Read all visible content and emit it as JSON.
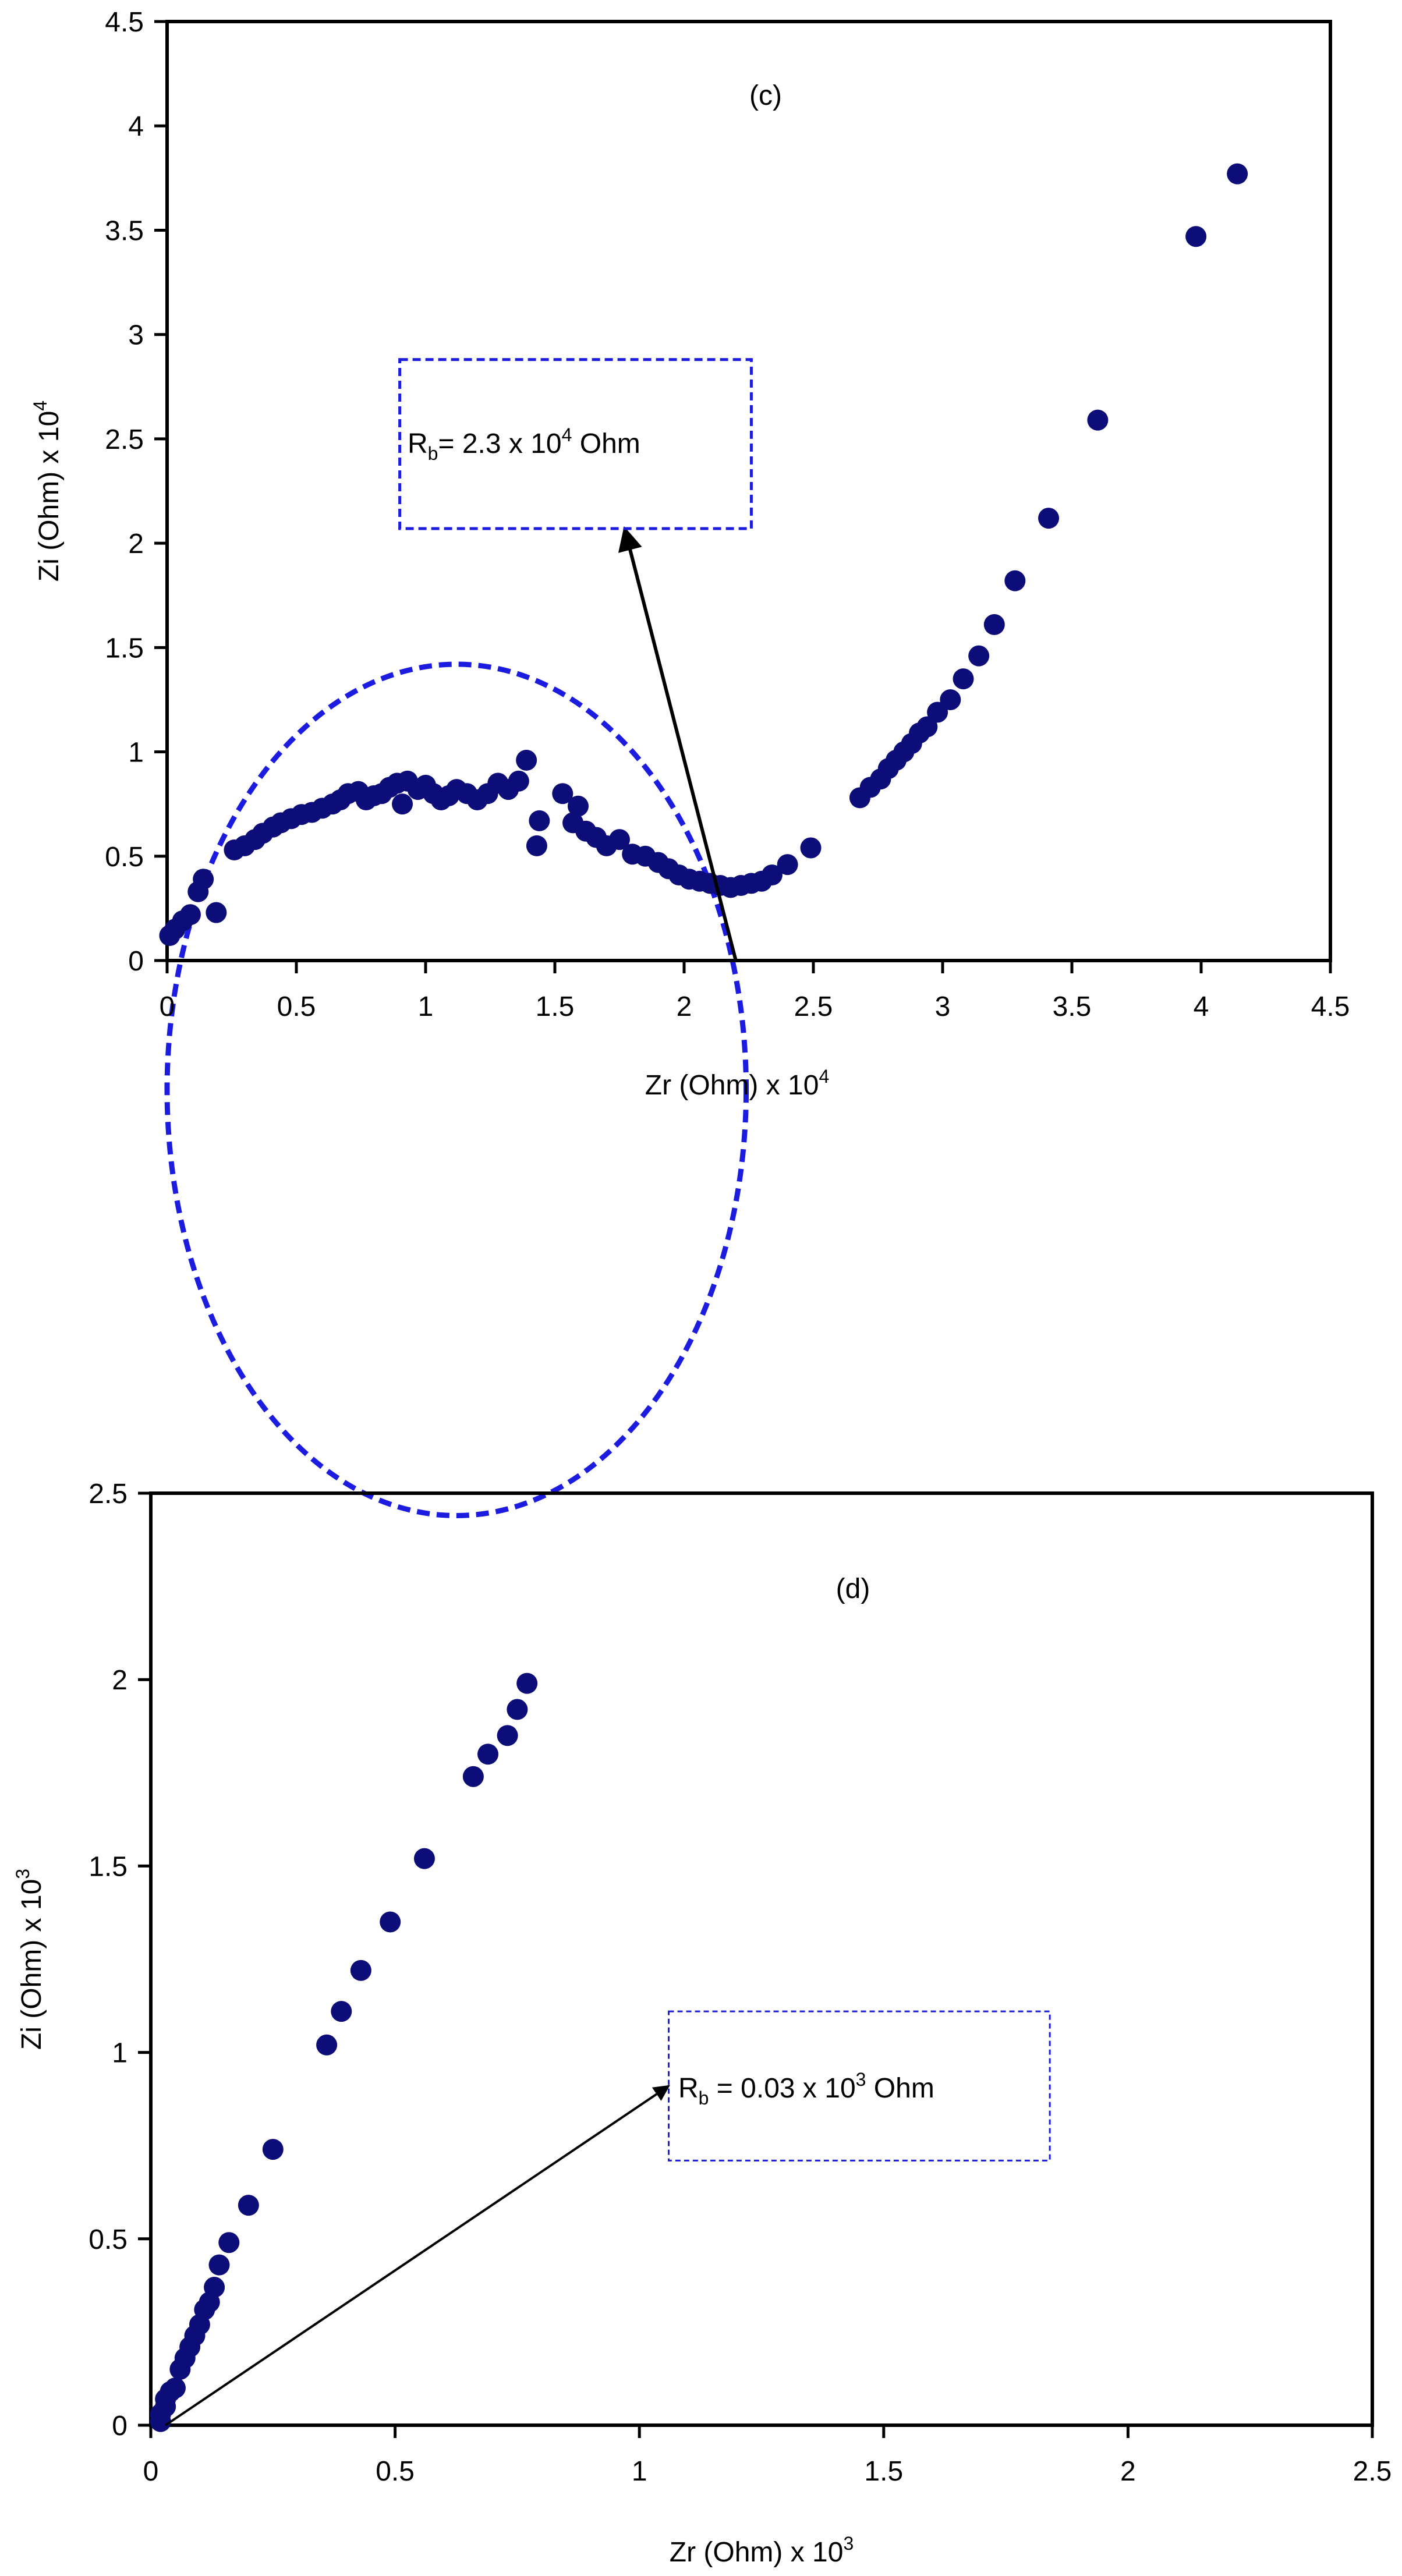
{
  "colors": {
    "marker": "#0D0D7A",
    "circle": "#1C1CE0",
    "box": "#1C1CE0",
    "arrow": "#000000",
    "frame": "#000000"
  },
  "chart_data": [
    {
      "type": "scatter",
      "panel_label": "(c)",
      "xlabel": {
        "base": "Zr (Ohm) x 10",
        "exp": "4"
      },
      "ylabel": {
        "base": "Zi (Ohm) x 10",
        "exp": "4"
      },
      "xlim": [
        0,
        4.5
      ],
      "ylim": [
        0,
        4.5
      ],
      "xticks": [
        "0",
        "0.5",
        "1",
        "1.5",
        "2",
        "2.5",
        "3",
        "3.5",
        "4",
        "4.5"
      ],
      "yticks": [
        "0",
        "0.5",
        "1",
        "1.5",
        "2",
        "2.5",
        "3",
        "3.5",
        "4",
        "4.5"
      ],
      "grid": false,
      "annotation": {
        "prefix": "R",
        "sub": "b",
        "mid": "= 2.3 x 10",
        "exp": "4",
        "suffix": " Ohm"
      },
      "arrow": {
        "from": [
          2.2,
          0
        ],
        "to": [
          1.77,
          2.07
        ]
      },
      "box": {
        "x": [
          0.9,
          2.26
        ],
        "y": [
          2.07,
          2.88
        ]
      },
      "fit_circle": {
        "cx": 1.12,
        "cy": -0.62,
        "rx": 1.12,
        "ry": 2.04
      },
      "points": [
        [
          0.01,
          0.12
        ],
        [
          0.03,
          0.15
        ],
        [
          0.06,
          0.19
        ],
        [
          0.09,
          0.22
        ],
        [
          0.12,
          0.33
        ],
        [
          0.14,
          0.39
        ],
        [
          0.19,
          0.23
        ],
        [
          0.26,
          0.53
        ],
        [
          0.3,
          0.55
        ],
        [
          0.34,
          0.58
        ],
        [
          0.37,
          0.61
        ],
        [
          0.41,
          0.64
        ],
        [
          0.44,
          0.66
        ],
        [
          0.48,
          0.68
        ],
        [
          0.52,
          0.7
        ],
        [
          0.56,
          0.71
        ],
        [
          0.6,
          0.73
        ],
        [
          0.64,
          0.75
        ],
        [
          0.67,
          0.77
        ],
        [
          0.7,
          0.8
        ],
        [
          0.74,
          0.81
        ],
        [
          0.77,
          0.77
        ],
        [
          0.8,
          0.79
        ],
        [
          0.83,
          0.8
        ],
        [
          0.86,
          0.83
        ],
        [
          0.89,
          0.85
        ],
        [
          0.91,
          0.75
        ],
        [
          0.93,
          0.86
        ],
        [
          0.97,
          0.82
        ],
        [
          1.0,
          0.84
        ],
        [
          1.03,
          0.8
        ],
        [
          1.06,
          0.77
        ],
        [
          1.09,
          0.79
        ],
        [
          1.12,
          0.82
        ],
        [
          1.16,
          0.8
        ],
        [
          1.2,
          0.77
        ],
        [
          1.24,
          0.8
        ],
        [
          1.28,
          0.85
        ],
        [
          1.32,
          0.82
        ],
        [
          1.36,
          0.86
        ],
        [
          1.39,
          0.96
        ],
        [
          1.43,
          0.55
        ],
        [
          1.44,
          0.67
        ],
        [
          1.53,
          0.8
        ],
        [
          1.57,
          0.66
        ],
        [
          1.59,
          0.74
        ],
        [
          1.62,
          0.62
        ],
        [
          1.66,
          0.59
        ],
        [
          1.7,
          0.55
        ],
        [
          1.75,
          0.58
        ],
        [
          1.8,
          0.51
        ],
        [
          1.85,
          0.5
        ],
        [
          1.9,
          0.47
        ],
        [
          1.94,
          0.44
        ],
        [
          1.98,
          0.41
        ],
        [
          2.02,
          0.39
        ],
        [
          2.06,
          0.38
        ],
        [
          2.1,
          0.37
        ],
        [
          2.14,
          0.36
        ],
        [
          2.18,
          0.35
        ],
        [
          2.22,
          0.36
        ],
        [
          2.26,
          0.37
        ],
        [
          2.3,
          0.38
        ],
        [
          2.34,
          0.41
        ],
        [
          2.4,
          0.46
        ],
        [
          2.49,
          0.54
        ],
        [
          2.68,
          0.78
        ],
        [
          2.72,
          0.83
        ],
        [
          2.76,
          0.87
        ],
        [
          2.79,
          0.92
        ],
        [
          2.82,
          0.96
        ],
        [
          2.85,
          1.0
        ],
        [
          2.88,
          1.04
        ],
        [
          2.91,
          1.09
        ],
        [
          2.94,
          1.12
        ],
        [
          2.98,
          1.19
        ],
        [
          3.03,
          1.25
        ],
        [
          3.08,
          1.35
        ],
        [
          3.14,
          1.46
        ],
        [
          3.2,
          1.61
        ],
        [
          3.28,
          1.82
        ],
        [
          3.41,
          2.12
        ],
        [
          3.6,
          2.59
        ],
        [
          3.98,
          3.47
        ],
        [
          4.14,
          3.77
        ]
      ]
    },
    {
      "type": "scatter",
      "panel_label": "(d)",
      "xlabel": {
        "base": "Zr (Ohm) x 10",
        "exp": "3"
      },
      "ylabel": {
        "base": "Zi (Ohm) x 10",
        "exp": "3"
      },
      "xlim": [
        0,
        2.5
      ],
      "ylim": [
        0,
        2.5
      ],
      "xticks": [
        "0",
        "0.5",
        "1",
        "1.5",
        "2",
        "2.5"
      ],
      "yticks": [
        "0",
        "0.5",
        "1",
        "1.5",
        "2",
        "2.5"
      ],
      "grid": false,
      "annotation": {
        "prefix": "R",
        "sub": "b",
        "mid": " = 0.03 x 10",
        "exp": "3",
        "suffix": " Ohm"
      },
      "arrow": {
        "from": [
          0.03,
          0.0
        ],
        "to": [
          1.06,
          0.91
        ]
      },
      "box": {
        "x": [
          1.06,
          1.84
        ],
        "y": [
          0.71,
          1.11
        ]
      },
      "points": [
        [
          0.02,
          0.01
        ],
        [
          0.02,
          0.03
        ],
        [
          0.03,
          0.05
        ],
        [
          0.03,
          0.07
        ],
        [
          0.04,
          0.09
        ],
        [
          0.05,
          0.1
        ],
        [
          0.06,
          0.15
        ],
        [
          0.07,
          0.18
        ],
        [
          0.08,
          0.21
        ],
        [
          0.09,
          0.24
        ],
        [
          0.1,
          0.27
        ],
        [
          0.11,
          0.31
        ],
        [
          0.12,
          0.33
        ],
        [
          0.13,
          0.37
        ],
        [
          0.14,
          0.43
        ],
        [
          0.16,
          0.49
        ],
        [
          0.2,
          0.59
        ],
        [
          0.25,
          0.74
        ],
        [
          0.36,
          1.02
        ],
        [
          0.39,
          1.11
        ],
        [
          0.43,
          1.22
        ],
        [
          0.49,
          1.35
        ],
        [
          0.56,
          1.52
        ],
        [
          0.66,
          1.74
        ],
        [
          0.69,
          1.8
        ],
        [
          0.73,
          1.85
        ],
        [
          0.75,
          1.92
        ],
        [
          0.77,
          1.99
        ]
      ]
    }
  ]
}
